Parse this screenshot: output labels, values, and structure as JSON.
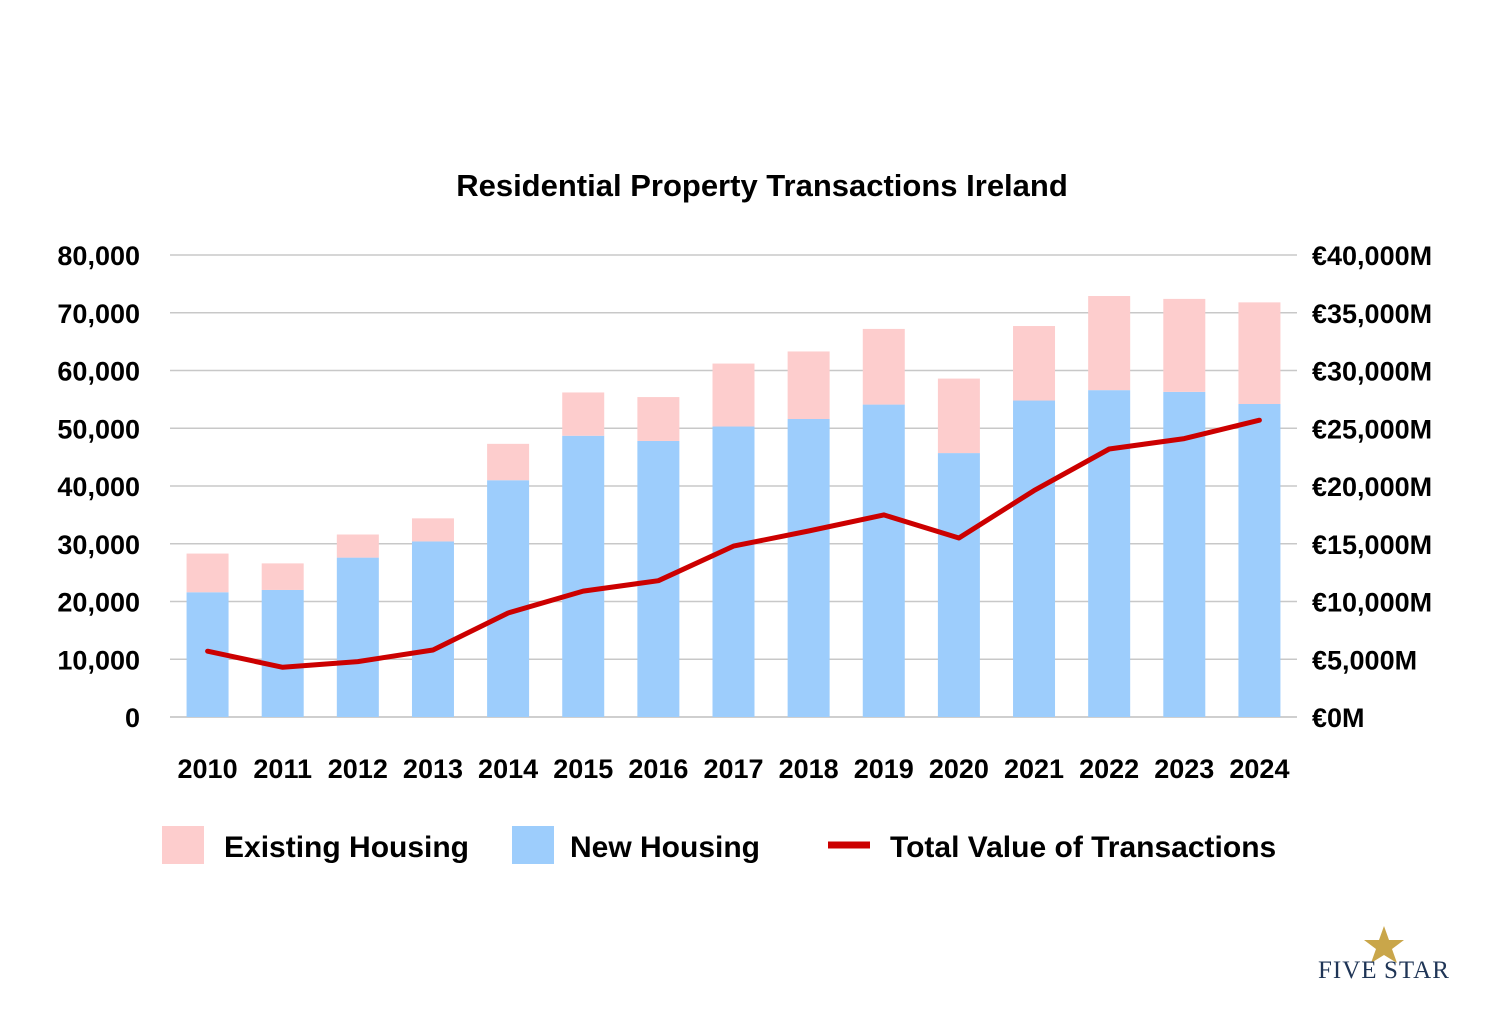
{
  "chart_data": {
    "type": "bar",
    "title": "Residential Property Transactions Ireland",
    "categories": [
      "2010",
      "2011",
      "2012",
      "2013",
      "2014",
      "2015",
      "2016",
      "2017",
      "2018",
      "2019",
      "2020",
      "2021",
      "2022",
      "2023",
      "2024"
    ],
    "series": [
      {
        "name": "New Housing",
        "kind": "stacked-bar",
        "axis": "left",
        "color": "#9dcdfc",
        "values": [
          21600,
          22000,
          27600,
          30400,
          41000,
          48700,
          47800,
          50300,
          51600,
          54100,
          45700,
          54800,
          56600,
          56300,
          54200
        ]
      },
      {
        "name": "Existing Housing",
        "kind": "stacked-bar",
        "axis": "left",
        "color": "#fdcdcd",
        "values": [
          6700,
          4600,
          4000,
          4000,
          6300,
          7500,
          7600,
          10900,
          11700,
          13100,
          12900,
          12900,
          16300,
          16100,
          17600
        ]
      },
      {
        "name": "Total Value of Transactions",
        "kind": "line",
        "axis": "right",
        "color": "#cc0000",
        "values": [
          5700,
          4300,
          4800,
          5800,
          9000,
          10900,
          11800,
          14800,
          16100,
          17500,
          15500,
          19600,
          23200,
          24100,
          25700
        ]
      }
    ],
    "left_axis": {
      "min": 0,
      "max": 80000,
      "ticks": [
        0,
        10000,
        20000,
        30000,
        40000,
        50000,
        60000,
        70000,
        80000
      ],
      "tick_labels": [
        "0",
        "10,000",
        "20,000",
        "30,000",
        "40,000",
        "50,000",
        "60,000",
        "70,000",
        "80,000"
      ]
    },
    "right_axis": {
      "min": 0,
      "max": 40000,
      "ticks": [
        0,
        5000,
        10000,
        15000,
        20000,
        25000,
        30000,
        35000,
        40000
      ],
      "tick_labels": [
        "€0M",
        "€5,000M",
        "€10,000M",
        "€15,000M",
        "€20,000M",
        "€25,000M",
        "€30,000M",
        "€35,000M",
        "€40,000M"
      ]
    },
    "grid": true,
    "legend": {
      "position": "bottom",
      "entries": [
        {
          "label": "Existing Housing",
          "color": "#fdcdcd",
          "swatch": "box"
        },
        {
          "label": "New Housing",
          "color": "#9dcdfc",
          "swatch": "box"
        },
        {
          "label": "Total Value of Transactions",
          "color": "#cc0000",
          "swatch": "line"
        }
      ]
    }
  },
  "logo": {
    "text_left": "FIVE",
    "text_right": "STAR",
    "star_color": "#c9a64a"
  },
  "colors": {
    "grid": "#c8c8c8",
    "axis": "#bfbfbf"
  }
}
